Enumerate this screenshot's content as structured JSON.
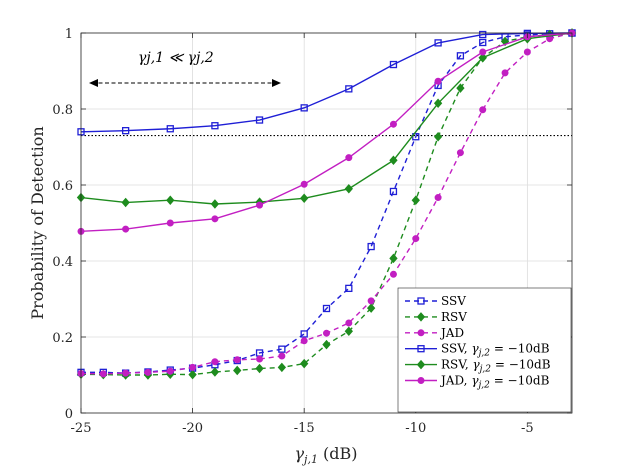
{
  "chart_data": {
    "type": "line",
    "title": "",
    "xlabel": "γ_{j,1} (dB)",
    "xlabel_main": "γ",
    "xlabel_sub": "j,1",
    "xlabel_unit": " (dB)",
    "ylabel": "Probability of Detection",
    "xlim": [
      -25,
      -3
    ],
    "ylim": [
      0,
      1
    ],
    "xticks": [
      -25,
      -20,
      -15,
      -10,
      -5
    ],
    "xtick_labels": [
      "-25",
      "-20",
      "-15",
      "-10",
      "-5"
    ],
    "yticks": [
      0,
      0.2,
      0.4,
      0.6,
      0.8,
      1
    ],
    "ytick_labels": [
      "0",
      "0.2",
      "0.4",
      "0.6",
      "0.8",
      "1"
    ],
    "grid": true,
    "legend_position": "bottom-right",
    "annotation": "γ_{j,1} ≪ γ_{j,2}",
    "annotation_text": "γj,1 ≪ γj,2",
    "threshold_line": 0.73,
    "series": [
      {
        "name": "SSV",
        "legend": "SSV",
        "color": "#1f1fd6",
        "dash": "5,4",
        "marker": "square",
        "x": [
          -25,
          -24,
          -23,
          -22,
          -21,
          -20,
          -19,
          -18,
          -17,
          -16,
          -15,
          -14,
          -13,
          -12,
          -11,
          -10,
          -9,
          -8,
          -7,
          -6,
          -5,
          -4,
          -3
        ],
        "y": [
          0.107,
          0.107,
          0.105,
          0.108,
          0.113,
          0.118,
          0.127,
          0.138,
          0.158,
          0.168,
          0.208,
          0.275,
          0.328,
          0.438,
          0.583,
          0.727,
          0.862,
          0.94,
          0.975,
          0.99,
          0.995,
          0.998,
          1.0
        ]
      },
      {
        "name": "RSV",
        "legend": "RSV",
        "color": "#1e8c1e",
        "dash": "5,4",
        "marker": "diamond",
        "x": [
          -25,
          -24,
          -23,
          -22,
          -21,
          -20,
          -19,
          -18,
          -17,
          -16,
          -15,
          -14,
          -13,
          -12,
          -11,
          -10,
          -9,
          -8,
          -7,
          -6,
          -5,
          -4,
          -3
        ],
        "y": [
          0.102,
          0.101,
          0.1,
          0.1,
          0.102,
          0.101,
          0.108,
          0.112,
          0.117,
          0.12,
          0.13,
          0.18,
          0.215,
          0.276,
          0.407,
          0.56,
          0.727,
          0.855,
          0.935,
          0.978,
          0.99,
          0.996,
          1.0
        ]
      },
      {
        "name": "JAD",
        "legend": "JAD",
        "color": "#c21fc2",
        "dash": "5,4",
        "marker": "circle",
        "x": [
          -25,
          -24,
          -23,
          -22,
          -21,
          -20,
          -19,
          -18,
          -17,
          -16,
          -15,
          -14,
          -13,
          -12,
          -11,
          -10,
          -9,
          -8,
          -7,
          -6,
          -5,
          -4,
          -3
        ],
        "y": [
          0.104,
          0.103,
          0.105,
          0.107,
          0.11,
          0.12,
          0.135,
          0.14,
          0.142,
          0.15,
          0.19,
          0.21,
          0.237,
          0.295,
          0.365,
          0.459,
          0.567,
          0.685,
          0.798,
          0.895,
          0.95,
          0.985,
          1.0
        ]
      },
      {
        "name": "SSV, -10dB",
        "legend": "SSV, γj,2 = −10dB",
        "legend_prefix": "SSV, ",
        "legend_suffix": " = −10dB",
        "color": "#1f1fd6",
        "dash": "",
        "marker": "square",
        "x": [
          -25,
          -23,
          -21,
          -19,
          -17,
          -15,
          -13,
          -11,
          -9,
          -7,
          -5,
          -3
        ],
        "y": [
          0.74,
          0.743,
          0.748,
          0.756,
          0.771,
          0.803,
          0.853,
          0.917,
          0.974,
          0.996,
          0.999,
          1.0
        ]
      },
      {
        "name": "RSV, -10dB",
        "legend": "RSV, γj,2 = −10dB",
        "legend_prefix": "RSV, ",
        "legend_suffix": " = −10dB",
        "color": "#1e8c1e",
        "dash": "",
        "marker": "diamond",
        "x": [
          -25,
          -23,
          -21,
          -19,
          -17,
          -15,
          -13,
          -11,
          -9,
          -7,
          -5,
          -3
        ],
        "y": [
          0.567,
          0.554,
          0.56,
          0.55,
          0.555,
          0.565,
          0.59,
          0.665,
          0.815,
          0.935,
          0.985,
          1.0
        ]
      },
      {
        "name": "JAD, -10dB",
        "legend": "JAD, γj,2 = −10dB",
        "legend_prefix": "JAD, ",
        "legend_suffix": " = −10dB",
        "color": "#c21fc2",
        "dash": "",
        "marker": "circle",
        "x": [
          -25,
          -23,
          -21,
          -19,
          -17,
          -15,
          -13,
          -11,
          -9,
          -7,
          -5,
          -3
        ],
        "y": [
          0.478,
          0.484,
          0.5,
          0.511,
          0.547,
          0.602,
          0.672,
          0.76,
          0.873,
          0.95,
          0.99,
          1.0
        ]
      }
    ]
  }
}
